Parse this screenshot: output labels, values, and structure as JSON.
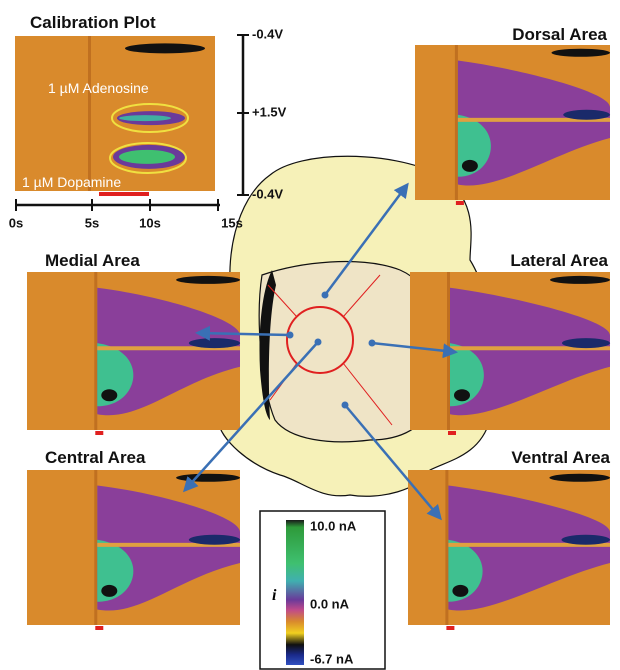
{
  "calibration": {
    "title": "Calibration Plot",
    "annotations": [
      "1 µM Adenosine",
      "1 µM Dopamine"
    ],
    "potential_labels": [
      "-0.4V",
      "+1.5V",
      "-0.4V"
    ],
    "time_labels": [
      "0s",
      "5s",
      "10s",
      "15s"
    ]
  },
  "panels": [
    "Dorsal Area",
    "Medial Area",
    "Lateral Area",
    "Central Area",
    "Ventral Area"
  ],
  "colorbar": {
    "symbol": "i",
    "labels": [
      "10.0 nA",
      "0.0 nA",
      "-6.7 nA"
    ]
  }
}
